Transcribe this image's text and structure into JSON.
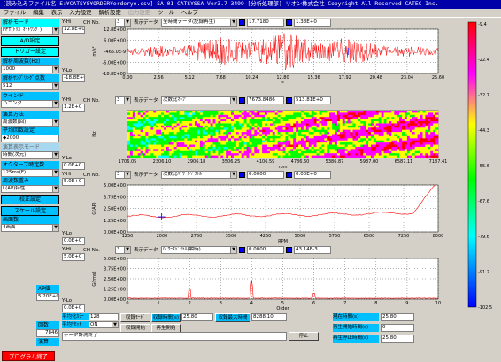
{
  "window": {
    "title": "[読み込みファイル名:E:¥CATSYS¥ORDER¥orderye.csv] SA-01  CATSYSSA Ver3.7-3499 [分析処理部] リオン株式会社  Copyright All Reserved CATEC Inc."
  },
  "menu": [
    {
      "label": "ファイル",
      "disabled": false
    },
    {
      "label": "編集",
      "disabled": false
    },
    {
      "label": "表示",
      "disabled": false
    },
    {
      "label": "入力設定",
      "disabled": false
    },
    {
      "label": "解析設定",
      "disabled": false
    },
    {
      "label": "出力設定",
      "disabled": true
    },
    {
      "label": "ツール",
      "disabled": false
    },
    {
      "label": "ヘルプ",
      "disabled": false
    }
  ],
  "left_panel": {
    "analysis_mode_label": "解析モード",
    "analysis_mode_value": "FFT(ﾄﾘｶﾞｵｰﾄﾜﾝｸﾞ)",
    "ad_settings": "A/D設定",
    "trigger_settings": "トリガー設定",
    "freq_range_label": "解析周波数(Hz)",
    "freq_range_value": "1000",
    "points_label": "解析ｻﾝﾌﾟﾘﾝｸﾞ点数",
    "points_value": "512",
    "window_label": "ウインド",
    "window_value": "ハニング",
    "avg_method_label": "演算方法",
    "avg_method_value": "周波数(回)",
    "avg_count_label": "平均回数設定",
    "avg_count_value": "2000",
    "detect_label": "演算表示モード",
    "detect_value": "時間(次元)",
    "octave_label": "オクターブ時定数",
    "octave_value": "125ms(F)",
    "weight_label": "周波数重み",
    "weight_value": "L(AP)特性",
    "calib_button": "校正設定",
    "scale_button": "スケール設定",
    "screen_label": "画面数",
    "screen_value": "4画面",
    "count_label": "回数",
    "count_value": "7846",
    "result_label": "演算",
    "end_button": "プログラム終了"
  },
  "panels": [
    {
      "ch_label": "CH No.",
      "ch_value": "3",
      "disp_label": "表示データ",
      "disp_value": "全時間データ(記録再生)",
      "v1": "17.7180",
      "v2": "1.38E+0",
      "yhi_label": "Y-Hi",
      "yhi_value": "12.8E+0",
      "ylo_label": "Y-Lo",
      "ylo_value": "-18.8E+0",
      "y_ticks": [
        "12.8E+00",
        "6.00E+00",
        "-465.0E-9",
        "-6.00E+00",
        "-18.8E+00"
      ],
      "x_ticks": [
        "0.00",
        "2.56",
        "5.12",
        "7.68",
        "10.24",
        "12.80",
        "15.36",
        "17.92",
        "20.48",
        "23.04",
        "25.60"
      ],
      "xlabel": "s",
      "ylabel": "m/s²"
    },
    {
      "ch_label": "CH No.",
      "ch_value": "3",
      "disp_label": "表示データ",
      "disp_value": "次数比ﾏｯﾌﾟ",
      "v1": "7673.8486",
      "v2": "513.81E+0",
      "yhi_label": "Y-Hi",
      "yhi_value": "1.2E+0",
      "ylo_label": "Y-Lo",
      "ylo_value": "0.0E+0",
      "x_ticks": [
        "1706.05",
        "2306.10",
        "2906.18",
        "3506.25",
        "4106.59",
        "4786.60",
        "5386.87",
        "5987.00",
        "6587.11",
        "7187.41"
      ],
      "xlabel": "rpm",
      "ylabel": "Hz"
    },
    {
      "ch_label": "CH No.",
      "ch_value": "3",
      "disp_label": "表示データ",
      "disp_value": "次数比ﾊﾟﾜｰｽﾍﾟｸﾄﾙ",
      "v1": "0.0000",
      "v2": "0.00E+0",
      "yhi_label": "Y-Hi",
      "yhi_value": "5.0E+0",
      "ylo_label": "Y-Lo",
      "ylo_value": "0.0E+0",
      "y_ticks": [
        "5.00E+00",
        "3.75E+00",
        "2.50E+00",
        "1.25E+00",
        "0.00E+00"
      ],
      "x_ticks": [
        "1250",
        "2000",
        "2750",
        "3500",
        "4250",
        "5000",
        "5750",
        "6500",
        "7250",
        "8000"
      ],
      "xlabel": "RPM",
      "ylabel": "G(AP)"
    },
    {
      "ch_label": "CH No.",
      "ch_value": "3",
      "disp_label": "表示データ",
      "disp_value": "ﾊﾟﾜｰｽﾍﾟｸﾄﾙ(瞬時)",
      "v1": "0.0000",
      "v2": "43.14E-3",
      "yhi_label": "Y-Hi",
      "yhi_value": "5.0E+0",
      "ylo_label": "Y-Lo",
      "ylo_value": "0.0E+0",
      "y_ticks": [
        "5.00E+00",
        "3.75E+00",
        "2.50E+00",
        "1.25E+00",
        "0.00E+00"
      ],
      "x_ticks": [
        "0",
        "1",
        "2",
        "3",
        "4",
        "5",
        "6",
        "7",
        "8",
        "9",
        "10"
      ],
      "xlabel": "Order",
      "ylabel": "G(rms)"
    }
  ],
  "ap_label": "AP値",
  "ap_value": "5.20E+0",
  "colorbar_ticks": [
    "-9.4",
    "-22.4",
    "-32.7",
    "-44.3",
    "-55.6",
    "-67.6",
    "-79.6",
    "-91.2",
    "-102.5"
  ],
  "bottom": {
    "avg_color_label": "平均化ｶﾗｰ",
    "avg_color_value": "128",
    "avg_reset_label": "平均ﾘｾｯﾄ",
    "avg_reset_value": "ON",
    "rec_mode_btn": "収録ﾓｰﾄﾞ",
    "rec_time_label": "収録時間(s)",
    "rec_time_value": "25.80",
    "rec_max_label": "収録最大時間",
    "rec_max_value": "8288.10",
    "rec_start_btn": "収録開始",
    "play_start_btn": "再生開始",
    "cur_time_label": "現在時間(s)",
    "cur_time_value": "25.80",
    "play_time_label": "再生開始時間(s)",
    "play_time_value": "0",
    "stop_time_label": "再生停止時間(s)",
    "stop_time_value": "25.80",
    "status": "データ計測終了",
    "stop_btn": "停止"
  }
}
